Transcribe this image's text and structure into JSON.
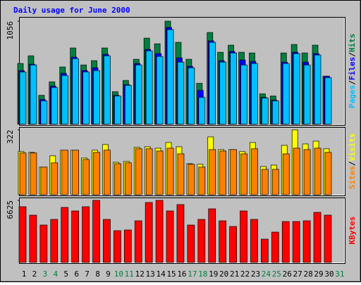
{
  "title": "Daily usage for June 2000",
  "categories": [
    1,
    2,
    3,
    4,
    5,
    6,
    7,
    8,
    9,
    10,
    11,
    12,
    13,
    14,
    15,
    16,
    17,
    18,
    19,
    20,
    21,
    22,
    23,
    24,
    25,
    26,
    27,
    28,
    29,
    30,
    31
  ],
  "weekend_days": [
    3,
    4,
    10,
    11,
    17,
    18,
    24,
    25,
    31
  ],
  "weekend_color": "#008040",
  "separator": "/",
  "chart_data": [
    {
      "type": "bar",
      "ylim": [
        0,
        1056
      ],
      "yticks": [
        1056
      ],
      "series": [
        {
          "name": "Hits",
          "color": "#008040",
          "values": [
            622,
            701,
            296,
            434,
            586,
            781,
            607,
            651,
            781,
            333,
            448,
            665,
            882,
            824,
            1056,
            839,
            665,
            419,
            940,
            737,
            810,
            737,
            730,
            311,
            289,
            730,
            817,
            730,
            810,
            492,
            null
          ]
        },
        {
          "name": "Files",
          "color": "#0000ff",
          "values": [
            549,
            615,
            253,
            391,
            521,
            687,
            550,
            578,
            716,
            296,
            405,
            622,
            766,
            723,
            991,
            680,
            593,
            347,
            854,
            651,
            745,
            658,
            643,
            275,
            246,
            636,
            737,
            636,
            723,
            492,
            null
          ]
        },
        {
          "name": "Pages",
          "color": "#00c0ff",
          "values": [
            535,
            607,
            239,
            376,
            499,
            672,
            535,
            549,
            701,
            289,
            398,
            607,
            752,
            694,
            969,
            636,
            578,
            275,
            839,
            636,
            730,
            607,
            622,
            268,
            239,
            622,
            723,
            607,
            709,
            477,
            null
          ]
        }
      ]
    },
    {
      "type": "bar",
      "ylim": [
        0,
        322
      ],
      "yticks": [
        322
      ],
      "series": [
        {
          "name": "Visits",
          "color": "#ffff00",
          "values": [
            214,
            210,
            137,
            193,
            221,
            221,
            182,
            221,
            249,
            161,
            165,
            235,
            238,
            231,
            259,
            238,
            154,
            151,
            287,
            224,
            224,
            214,
            259,
            140,
            147,
            245,
            322,
            252,
            266,
            228,
            null
          ]
        },
        {
          "name": "Sites",
          "color": "#ff8000",
          "values": [
            207,
            207,
            137,
            158,
            221,
            221,
            175,
            210,
            221,
            154,
            158,
            228,
            228,
            217,
            231,
            203,
            151,
            137,
            224,
            217,
            224,
            203,
            228,
            126,
            126,
            203,
            231,
            224,
            231,
            210,
            null
          ]
        }
      ]
    },
    {
      "type": "bar",
      "ylim": [
        0,
        6625
      ],
      "yticks": [
        6625
      ],
      "series": [
        {
          "name": "KBytes",
          "color": "#ff0000",
          "values": [
            5947,
            5044,
            3990,
            4592,
            5872,
            5495,
            5947,
            6625,
            4592,
            3388,
            3463,
            4442,
            6399,
            6625,
            5495,
            6173,
            3990,
            4592,
            5721,
            4442,
            3839,
            5495,
            4592,
            2484,
            3237,
            4366,
            4366,
            4442,
            5345,
            5044,
            null
          ]
        }
      ]
    }
  ]
}
